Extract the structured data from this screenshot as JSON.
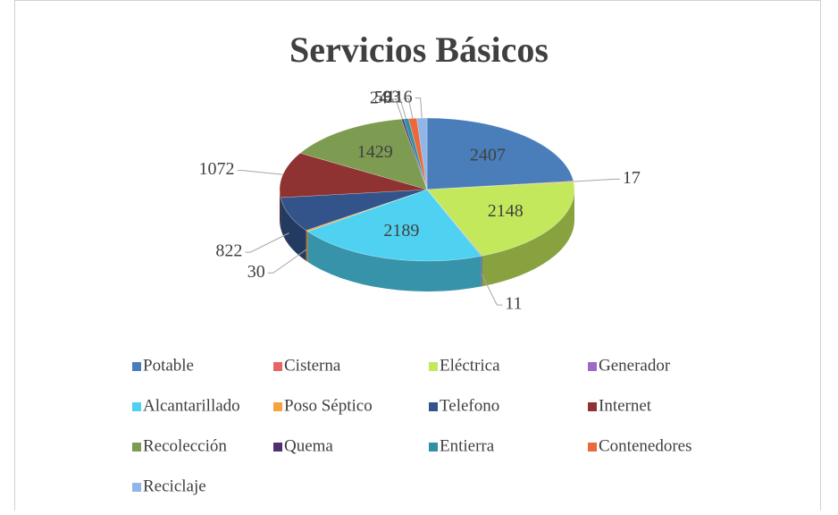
{
  "chart_data": {
    "type": "pie",
    "title": "Servicios Básicos",
    "categories": [
      "Potable",
      "Cisterna",
      "Eléctrica",
      "Generador",
      "Alcantarillado",
      "Poso Séptico",
      "Telefono",
      "Internet",
      "Recolección",
      "Quema",
      "Entierra",
      "Contenedores",
      "Reciclaje"
    ],
    "values": [
      2407,
      17,
      2148,
      11,
      2189,
      30,
      822,
      1072,
      1429,
      24,
      56,
      93,
      116
    ],
    "colors": [
      "#4a7ebb",
      "#e86464",
      "#c3e85c",
      "#9b6bcc",
      "#4fd2f2",
      "#f7a33c",
      "#33548a",
      "#8e3232",
      "#7e9b52",
      "#4d3170",
      "#3190a8",
      "#ea6a3c",
      "#8fb6e6"
    ],
    "legend": "bottom"
  }
}
